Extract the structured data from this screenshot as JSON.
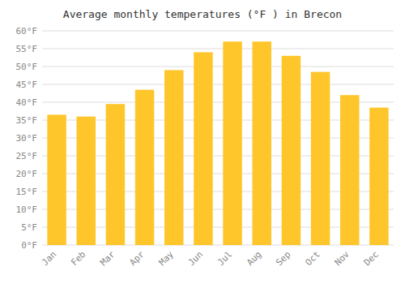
{
  "chart_data": {
    "type": "bar",
    "title": "Average monthly temperatures (°F ) in Brecon",
    "categories": [
      "Jan",
      "Feb",
      "Mar",
      "Apr",
      "May",
      "Jun",
      "Jul",
      "Aug",
      "Sep",
      "Oct",
      "Nov",
      "Dec"
    ],
    "values": [
      36.5,
      36.0,
      39.5,
      43.5,
      49.0,
      54.0,
      57.0,
      57.0,
      53.0,
      48.5,
      42.0,
      38.5
    ],
    "color": "#FFC62B",
    "ylim": [
      0,
      60
    ],
    "yticks": [
      {
        "value": 0,
        "label": "0°F"
      },
      {
        "value": 5,
        "label": "5°F"
      },
      {
        "value": 10,
        "label": "10°F"
      },
      {
        "value": 15,
        "label": "15°F"
      },
      {
        "value": 20,
        "label": "20°F"
      },
      {
        "value": 25,
        "label": "25°F"
      },
      {
        "value": 30,
        "label": "30°F"
      },
      {
        "value": 35,
        "label": "35°F"
      },
      {
        "value": 40,
        "label": "40°F"
      },
      {
        "value": 45,
        "label": "45°F"
      },
      {
        "value": 50,
        "label": "50°F"
      },
      {
        "value": 55,
        "label": "55°F"
      },
      {
        "value": 60,
        "label": "60°F"
      }
    ],
    "grid": true
  }
}
